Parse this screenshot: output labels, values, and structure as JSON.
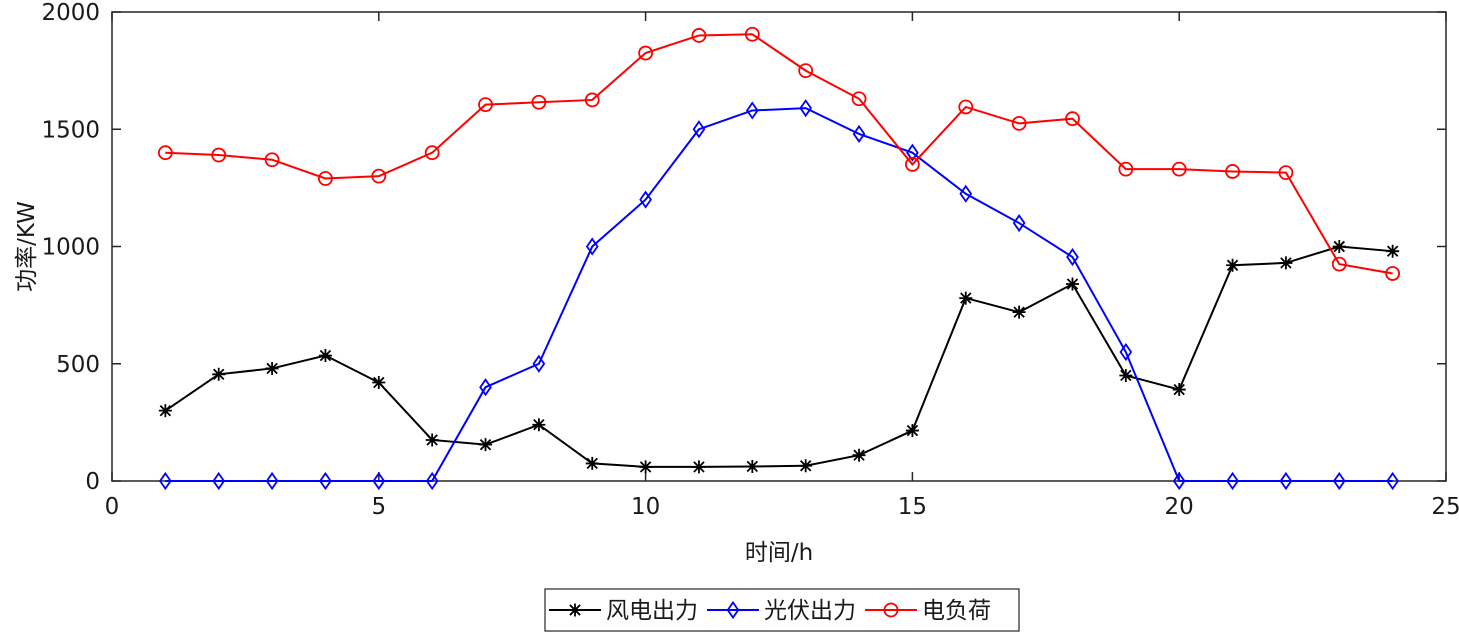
{
  "chart_data": {
    "type": "line",
    "x": [
      1,
      2,
      3,
      4,
      5,
      6,
      7,
      8,
      9,
      10,
      11,
      12,
      13,
      14,
      15,
      16,
      17,
      18,
      19,
      20,
      21,
      22,
      23,
      24
    ],
    "xlabel": "时间/h",
    "ylabel": "功率/KW",
    "xlim": [
      0,
      25
    ],
    "ylim": [
      0,
      2000
    ],
    "xticks": [
      0,
      5,
      10,
      15,
      20,
      25
    ],
    "yticks": [
      0,
      500,
      1000,
      1500,
      2000
    ],
    "grid": false,
    "legend_position": "bottom-center",
    "series": [
      {
        "name": "风电出力",
        "color": "#000000",
        "marker": "asterisk",
        "values": [
          300,
          455,
          480,
          535,
          420,
          175,
          155,
          240,
          75,
          60,
          60,
          62,
          65,
          110,
          215,
          780,
          720,
          840,
          450,
          390,
          920,
          930,
          1000,
          980
        ]
      },
      {
        "name": "光伏出力",
        "color": "#0000ff",
        "marker": "diamond",
        "values": [
          0,
          0,
          0,
          0,
          0,
          0,
          400,
          500,
          1000,
          1200,
          1500,
          1580,
          1590,
          1480,
          1400,
          1225,
          1100,
          955,
          550,
          0,
          0,
          0,
          0,
          0
        ]
      },
      {
        "name": "电负荷",
        "color": "#ff0000",
        "marker": "circle",
        "values": [
          1400,
          1390,
          1370,
          1290,
          1300,
          1400,
          1605,
          1615,
          1625,
          1825,
          1900,
          1905,
          1750,
          1630,
          1350,
          1595,
          1525,
          1545,
          1330,
          1330,
          1320,
          1315,
          925,
          885
        ]
      }
    ]
  }
}
